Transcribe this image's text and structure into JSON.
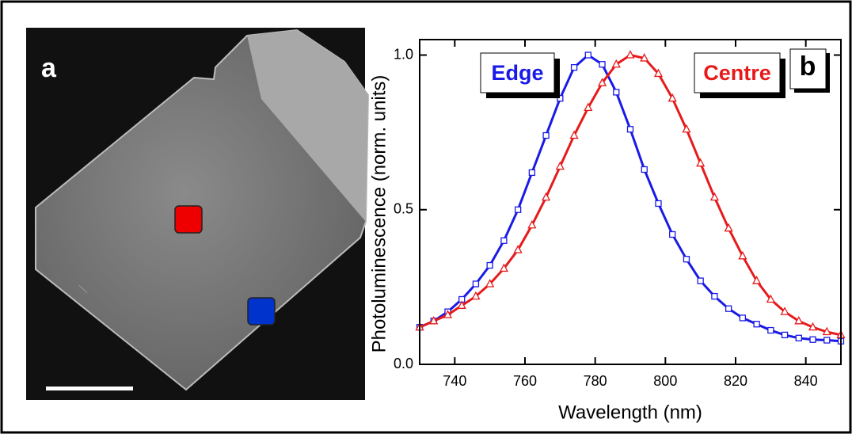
{
  "image_panel": {
    "label": "a"
  },
  "chart_data": {
    "type": "line",
    "panel_label": "b",
    "x_label": "Wavelength (nm)",
    "y_label": "Photoluminescence (norm. units)",
    "x": [
      730,
      734,
      738,
      742,
      746,
      750,
      754,
      758,
      762,
      766,
      770,
      774,
      778,
      782,
      786,
      790,
      794,
      798,
      802,
      806,
      810,
      814,
      818,
      822,
      826,
      830,
      834,
      838,
      842,
      846,
      850
    ],
    "series": [
      {
        "name": "Edge",
        "color": "#1a1ae6",
        "marker": "square",
        "values": [
          0.12,
          0.14,
          0.17,
          0.21,
          0.26,
          0.32,
          0.4,
          0.5,
          0.62,
          0.74,
          0.86,
          0.96,
          1.0,
          0.97,
          0.88,
          0.76,
          0.63,
          0.52,
          0.42,
          0.34,
          0.27,
          0.22,
          0.18,
          0.15,
          0.13,
          0.11,
          0.095,
          0.085,
          0.08,
          0.078,
          0.075
        ]
      },
      {
        "name": "Centre",
        "color": "#e61a1a",
        "marker": "triangle",
        "values": [
          0.12,
          0.14,
          0.16,
          0.19,
          0.22,
          0.26,
          0.31,
          0.37,
          0.45,
          0.54,
          0.64,
          0.74,
          0.83,
          0.91,
          0.97,
          1.0,
          0.99,
          0.94,
          0.86,
          0.76,
          0.65,
          0.54,
          0.44,
          0.35,
          0.27,
          0.21,
          0.17,
          0.14,
          0.12,
          0.105,
          0.095
        ]
      }
    ],
    "xlim": [
      730,
      850
    ],
    "xticks": [
      740,
      760,
      780,
      800,
      820,
      840
    ],
    "ylim": [
      0,
      1.05
    ],
    "yticks": [
      {
        "value": 0,
        "label": "0.0"
      },
      0.5,
      {
        "value": 1,
        "label": "1.0"
      }
    ]
  }
}
